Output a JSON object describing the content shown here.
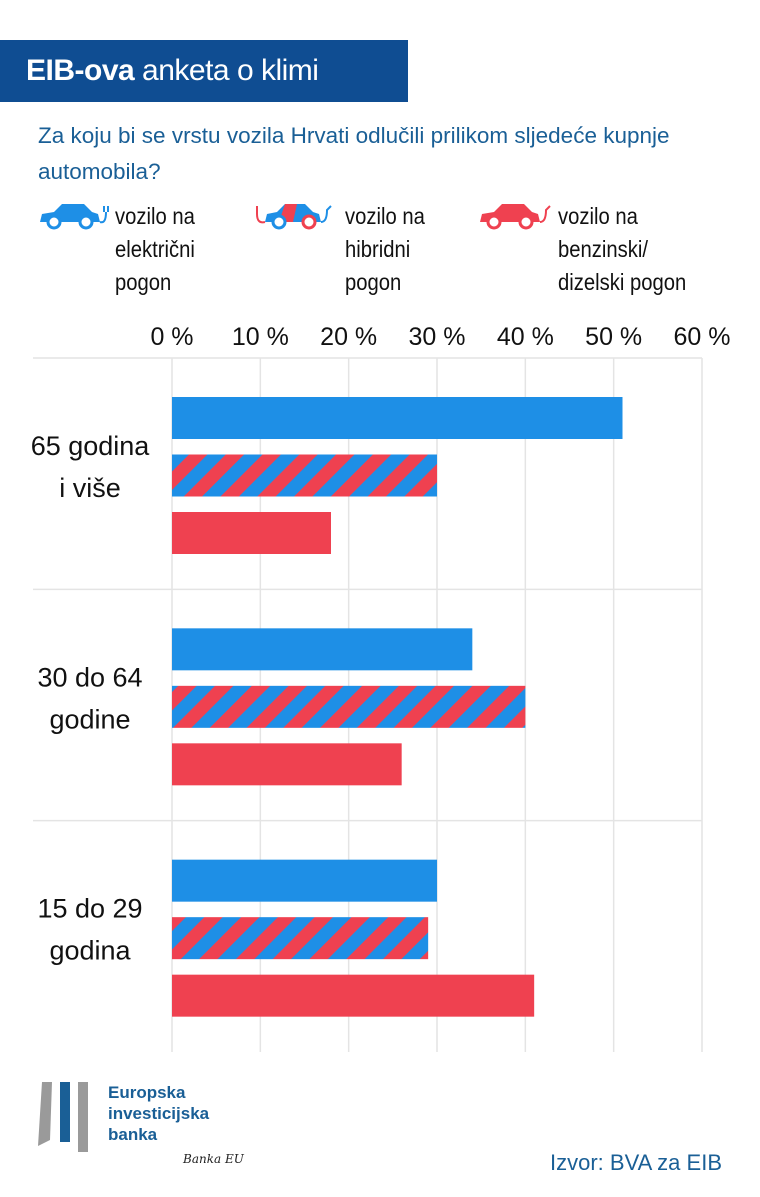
{
  "header": {
    "title_bold": "EIB-ova",
    "title_rest": "anketa o klimi"
  },
  "question": "Za koju bi se vrstu vozila Hrvati odlučili prilikom sljedeće kupnje automobila?",
  "colors": {
    "electric": "#1e8fe6",
    "hybrid_a": "#1e8fe6",
    "hybrid_b": "#ef4150",
    "petrol": "#ef4150",
    "header_bg": "#0f4d92",
    "text_blue": "#1a5f96",
    "grid": "#e4e4e4"
  },
  "legend": [
    {
      "icon": "electric-car-icon",
      "label": "vozilo na električni pogon"
    },
    {
      "icon": "hybrid-car-icon",
      "label": "vozilo na hibridni pogon"
    },
    {
      "icon": "petrol-car-icon",
      "label": "vozilo na benzinski/ dizelski pogon"
    }
  ],
  "chart_data": {
    "type": "bar",
    "orientation": "horizontal",
    "categories": [
      "65 godina i više",
      "30 do 64 godine",
      "15 do 29 godina"
    ],
    "series": [
      {
        "name": "vozilo na električni pogon",
        "values": [
          51,
          34,
          30
        ]
      },
      {
        "name": "vozilo na hibridni pogon",
        "values": [
          30,
          40,
          29
        ]
      },
      {
        "name": "vozilo na benzinski/ dizelski pogon",
        "values": [
          18,
          26,
          41
        ]
      }
    ],
    "xlim": [
      0,
      60
    ],
    "xticks": [
      "0 %",
      "10 %",
      "20 %",
      "30 %",
      "40 %",
      "50 %",
      "60 %"
    ],
    "xaxis_position": "top",
    "grid": true,
    "legend_position": "top"
  },
  "footer": {
    "logo_text": [
      "Europska",
      "investicijska",
      "banka"
    ],
    "signature": "Banka EU",
    "source": "Izvor: BVA za EIB"
  }
}
